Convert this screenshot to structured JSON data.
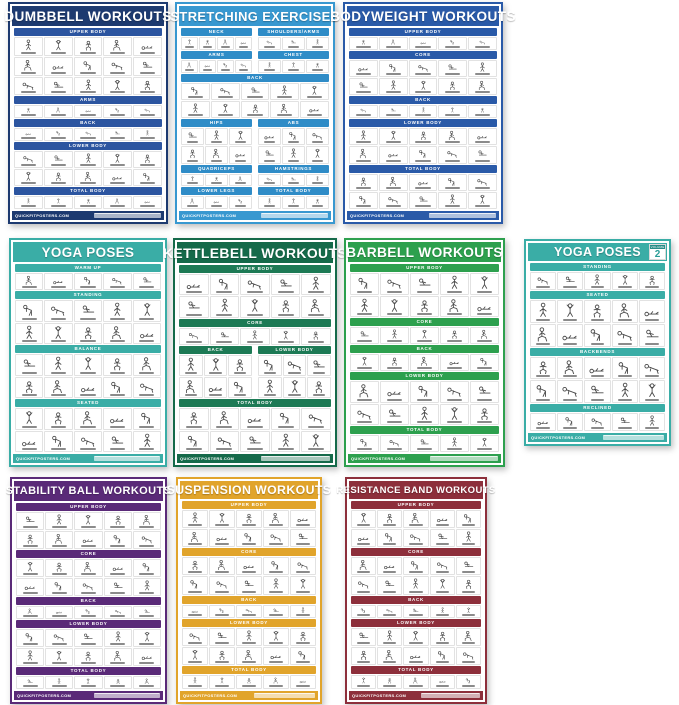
{
  "page": {
    "background": "#ffffff",
    "description_visible_text_only": true
  },
  "posters": [
    {
      "id": "dumbbell",
      "title": "DUMBBELL WORKOUTS",
      "colors": {
        "header": "#1d3a70",
        "band": "#2c55a0"
      },
      "footer": {
        "site": "QUICKFITPOSTERS.COM"
      },
      "sections": [
        {
          "label": "UPPER BODY",
          "rows": 3,
          "cols": 5
        },
        {
          "label": "ARMS",
          "rows": 1,
          "cols": 5
        },
        {
          "label": "BACK",
          "rows": 1,
          "cols": 5
        },
        {
          "label": "LOWER BODY",
          "rows": 2,
          "cols": 5
        },
        {
          "label": "TOTAL BODY",
          "rows": 1,
          "cols": 5
        }
      ]
    },
    {
      "id": "stretching",
      "title": "STRETCHING EXERCISES",
      "colors": {
        "header": "#3898d0",
        "band": "#2f8cc7"
      },
      "footer": {
        "site": "QUICKFITPOSTERS.COM"
      },
      "sections": [
        {
          "rows": 1,
          "split": [
            {
              "label": "NECK",
              "rows": 1,
              "cols": 4
            },
            {
              "label": "SHOULDERS/ARMS",
              "rows": 1,
              "cols": 3
            }
          ]
        },
        {
          "rows": 1,
          "split": [
            {
              "label": "ARMS",
              "rows": 1,
              "cols": 4
            },
            {
              "label": "CHEST",
              "rows": 1,
              "cols": 3
            }
          ]
        },
        {
          "label": "BACK",
          "rows": 2,
          "cols": 5
        },
        {
          "rows": 2,
          "split": [
            {
              "label": "HIPS",
              "rows": 2,
              "cols": 3
            },
            {
              "label": "ABS",
              "rows": 2,
              "cols": 3
            }
          ]
        },
        {
          "rows": 1,
          "split": [
            {
              "label": "QUADRICEPS",
              "rows": 1,
              "cols": 3
            },
            {
              "label": "HAMSTRINGS",
              "rows": 1,
              "cols": 3
            }
          ]
        },
        {
          "rows": 1,
          "split": [
            {
              "label": "LOWER LEGS",
              "rows": 1,
              "cols": 3
            },
            {
              "label": "TOTAL BODY",
              "rows": 1,
              "cols": 3
            }
          ]
        }
      ]
    },
    {
      "id": "bodyweight",
      "title": "BODYWEIGHT WORKOUTS",
      "colors": {
        "header": "#2a5aa8",
        "band": "#2a5aa8"
      },
      "footer": {
        "site": "QUICKFITPOSTERS.COM"
      },
      "sections": [
        {
          "label": "UPPER BODY",
          "rows": 1,
          "cols": 5
        },
        {
          "label": "CORE",
          "rows": 2,
          "cols": 5
        },
        {
          "label": "BACK",
          "rows": 1,
          "cols": 5
        },
        {
          "label": "LOWER BODY",
          "rows": 2,
          "cols": 5
        },
        {
          "label": "TOTAL BODY",
          "rows": 2,
          "cols": 5
        }
      ]
    },
    {
      "id": "yoga",
      "title": "YOGA POSES",
      "colors": {
        "header": "#3aada6",
        "band": "#3aada6"
      },
      "footer": {
        "site": "QUICKFITPOSTERS.COM"
      },
      "sections": [
        {
          "label": "WARM UP",
          "rows": 1,
          "cols": 5
        },
        {
          "label": "STANDING",
          "rows": 2,
          "cols": 5
        },
        {
          "label": "BALANCE",
          "rows": 2,
          "cols": 5
        },
        {
          "label": "SEATED",
          "rows": 2,
          "cols": 5
        }
      ]
    },
    {
      "id": "kettlebell",
      "title": "KETTLEBELL WORKOUTS",
      "colors": {
        "header": "#156a4a",
        "band": "#1d7a55"
      },
      "footer": {
        "site": "QUICKFITPOSTERS.COM"
      },
      "sections": [
        {
          "label": "UPPER BODY",
          "rows": 2,
          "cols": 5
        },
        {
          "label": "CORE",
          "rows": 1,
          "cols": 5
        },
        {
          "rows": 2,
          "split": [
            {
              "label": "BACK",
              "rows": 2,
              "cols": 3
            },
            {
              "label": "LOWER BODY",
              "rows": 2,
              "cols": 3
            }
          ]
        },
        {
          "label": "TOTAL BODY",
          "rows": 2,
          "cols": 5
        }
      ]
    },
    {
      "id": "barbell",
      "title": "BARBELL WORKOUTS",
      "colors": {
        "header": "#2da04e",
        "band": "#2da04e"
      },
      "footer": {
        "site": "QUICKFITPOSTERS.COM"
      },
      "sections": [
        {
          "label": "UPPER BODY",
          "rows": 2,
          "cols": 5
        },
        {
          "label": "CORE",
          "rows": 1,
          "cols": 5
        },
        {
          "label": "BACK",
          "rows": 1,
          "cols": 5
        },
        {
          "label": "LOWER BODY",
          "rows": 2,
          "cols": 5
        },
        {
          "label": "TOTAL BODY",
          "rows": 1,
          "cols": 5
        }
      ]
    },
    {
      "id": "yoga2",
      "title": "YOGA POSES",
      "badge": {
        "sub": "VOLUME",
        "label": "2"
      },
      "colors": {
        "header": "#3aada6",
        "band": "#3aada6"
      },
      "footer": {
        "site": "QUICKFITPOSTERS.COM"
      },
      "sections": [
        {
          "label": "STANDING",
          "rows": 1,
          "cols": 5
        },
        {
          "label": "SEATED",
          "rows": 2,
          "cols": 5
        },
        {
          "label": "BACKBENDS",
          "rows": 2,
          "cols": 5
        },
        {
          "label": "RECLINED",
          "rows": 1,
          "cols": 5
        }
      ]
    },
    {
      "id": "stability",
      "title": "STABILITY BALL WORKOUTS",
      "colors": {
        "header": "#5a2a78",
        "band": "#5a2a78"
      },
      "footer": {
        "site": "QUICKFITPOSTERS.COM"
      },
      "sections": [
        {
          "label": "UPPER BODY",
          "rows": 2,
          "cols": 5
        },
        {
          "label": "CORE",
          "rows": 2,
          "cols": 5
        },
        {
          "label": "BACK",
          "rows": 1,
          "cols": 5
        },
        {
          "label": "LOWER BODY",
          "rows": 2,
          "cols": 5
        },
        {
          "label": "TOTAL BODY",
          "rows": 1,
          "cols": 5
        }
      ]
    },
    {
      "id": "suspension",
      "title": "SUSPENSION WORKOUTS",
      "colors": {
        "header": "#e1a42b",
        "band": "#e1a42b"
      },
      "footer": {
        "site": "QUICKFITPOSTERS.COM"
      },
      "sections": [
        {
          "label": "UPPER BODY",
          "rows": 2,
          "cols": 5
        },
        {
          "label": "CORE",
          "rows": 2,
          "cols": 5
        },
        {
          "label": "BACK",
          "rows": 1,
          "cols": 5
        },
        {
          "label": "LOWER BODY",
          "rows": 2,
          "cols": 5
        },
        {
          "label": "TOTAL BODY",
          "rows": 1,
          "cols": 5
        }
      ]
    },
    {
      "id": "resistance",
      "title": "RESISTANCE BAND WORKOUTS",
      "colors": {
        "header": "#8d2f3b",
        "band": "#8d2f3b"
      },
      "footer": {
        "site": "QUICKFITPOSTERS.COM"
      },
      "sections": [
        {
          "label": "UPPER BODY",
          "rows": 2,
          "cols": 5
        },
        {
          "label": "CORE",
          "rows": 2,
          "cols": 5
        },
        {
          "label": "BACK",
          "rows": 1,
          "cols": 5
        },
        {
          "label": "LOWER BODY",
          "rows": 2,
          "cols": 5
        },
        {
          "label": "TOTAL BODY",
          "rows": 1,
          "cols": 5
        }
      ]
    }
  ]
}
